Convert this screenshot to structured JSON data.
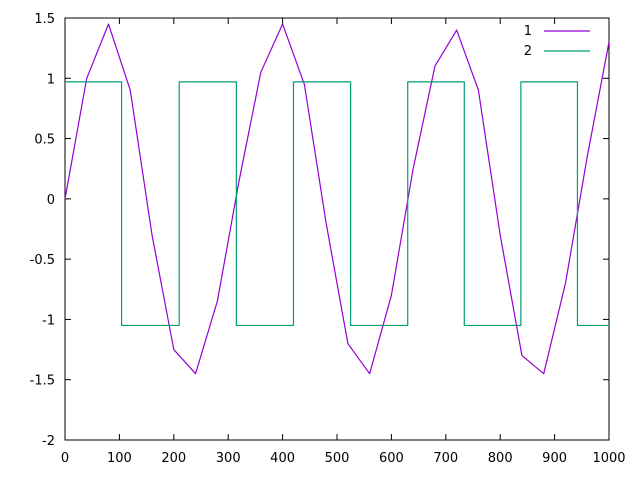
{
  "chart_data": {
    "type": "line",
    "title": "",
    "xlabel": "",
    "ylabel": "",
    "xlim": [
      0,
      1000
    ],
    "ylim": [
      -2,
      1.5
    ],
    "grid": false,
    "legend_position": "top-right",
    "x_ticks": [
      0,
      100,
      200,
      300,
      400,
      500,
      600,
      700,
      800,
      900,
      1000
    ],
    "y_ticks": [
      -2,
      -1.5,
      -1,
      -0.5,
      0,
      0.5,
      1,
      1.5
    ],
    "x_tick_labels": [
      "0",
      "100",
      "200",
      "300",
      "400",
      "500",
      "600",
      "700",
      "800",
      "900",
      "1000"
    ],
    "y_tick_labels": [
      "-2",
      "-1.5",
      "-1",
      "-0.5",
      "0",
      "0.5",
      "1",
      "1.5"
    ],
    "series": [
      {
        "name": "1",
        "color": "#9400d3",
        "x": [
          0,
          40,
          80,
          120,
          160,
          200,
          240,
          280,
          320,
          360,
          400,
          440,
          480,
          520,
          560,
          600,
          640,
          680,
          720,
          760,
          800,
          840,
          880,
          920,
          960,
          1000
        ],
        "y": [
          0,
          1.0,
          1.45,
          0.9,
          -0.3,
          -1.25,
          -1.45,
          -0.85,
          0.15,
          1.05,
          1.45,
          0.95,
          -0.2,
          -1.2,
          -1.45,
          -0.8,
          0.25,
          1.1,
          1.4,
          0.9,
          -0.3,
          -1.3,
          -1.45,
          -0.7,
          0.35,
          1.3
        ]
      },
      {
        "name": "2",
        "color": "#009e73",
        "x": [
          0,
          104,
          104,
          210,
          210,
          315,
          315,
          420,
          420,
          525,
          525,
          630,
          630,
          734,
          734,
          838,
          838,
          942,
          942,
          1000
        ],
        "y": [
          0.97,
          0.97,
          -1.05,
          -1.05,
          0.97,
          0.97,
          -1.05,
          -1.05,
          0.97,
          0.97,
          -1.05,
          -1.05,
          0.97,
          0.97,
          -1.05,
          -1.05,
          0.97,
          0.97,
          -1.05,
          -1.05
        ]
      }
    ]
  }
}
